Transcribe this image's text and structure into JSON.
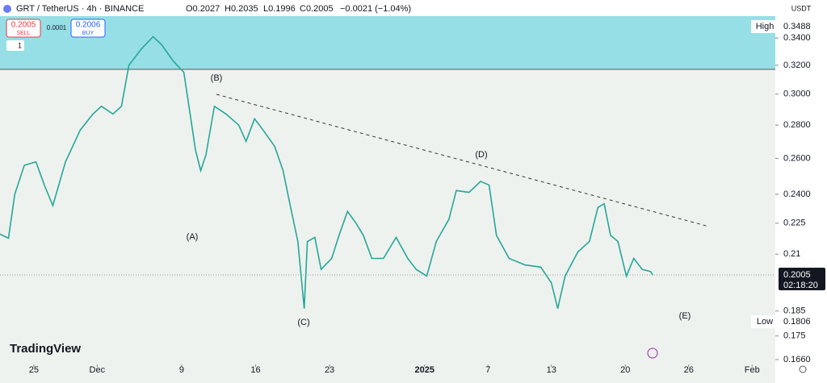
{
  "header": {
    "symbol": "GRT / TetherUS · 4h · BINANCE",
    "open": "O0.2027",
    "high": "H0.2035",
    "low": "L0.1996",
    "close": "C0.2005",
    "change": "−0.0021 (−1.04%)",
    "sell_price": "0.2005",
    "sell": "SELL",
    "spread": "0.0001",
    "buy_price": "0.2006",
    "buy": "BUY",
    "layers": "1",
    "currency": "USDT",
    "brand": "TradingView"
  },
  "chart_data": {
    "type": "line",
    "log_scale": true,
    "x": [
      -3.2,
      -2.4,
      -1.8,
      -0.9,
      0.2,
      1.0,
      1.8,
      3.0,
      4.4,
      5.6,
      6.4,
      7.5,
      8.3,
      9.0,
      10.2,
      11.3,
      12.1,
      13.2,
      14.2,
      14.8,
      15.3,
      15.8,
      16.3,
      17.1,
      18.2,
      19.4,
      20.1,
      20.9,
      21.7,
      22.8,
      23.6,
      24.2,
      25.0,
      25.6,
      25.9,
      26.6,
      27.2,
      28.2,
      28.9,
      29.7,
      30.5,
      31.2,
      32.0,
      33.1,
      34.3,
      35.4,
      36.2,
      37.2,
      38.1,
      39.3,
      40.0,
      41.2,
      42.3,
      43.1,
      43.8,
      45.0,
      46.5,
      48.0,
      49.0,
      49.6,
      50.3,
      51.5,
      52.6,
      53.4,
      54.0,
      54.6,
      55.3,
      56.1,
      56.8,
      57.6,
      58.4,
      58.6
    ],
    "values": [
      0.2196,
      0.2176,
      0.24,
      0.256,
      0.258,
      0.245,
      0.234,
      0.258,
      0.277,
      0.287,
      0.292,
      0.287,
      0.292,
      0.32,
      0.332,
      0.341,
      0.335,
      0.323,
      0.315,
      0.287,
      0.265,
      0.253,
      0.262,
      0.292,
      0.287,
      0.28,
      0.27,
      0.284,
      0.277,
      0.267,
      0.253,
      0.236,
      0.216,
      0.186,
      0.216,
      0.218,
      0.203,
      0.208,
      0.219,
      0.231,
      0.225,
      0.219,
      0.208,
      0.208,
      0.218,
      0.208,
      0.203,
      0.2,
      0.216,
      0.227,
      0.242,
      0.241,
      0.247,
      0.245,
      0.219,
      0.208,
      0.205,
      0.204,
      0.197,
      0.186,
      0.2,
      0.211,
      0.216,
      0.233,
      0.235,
      0.219,
      0.216,
      0.2,
      0.208,
      0.203,
      0.202,
      0.2005
    ],
    "color": "#26a69a",
    "xlim": [
      -3.2,
      70.2
    ],
    "xticks": [
      {
        "value": 0,
        "label": "25"
      },
      {
        "value": 6,
        "label": "Dec"
      },
      {
        "value": 14,
        "label": "9"
      },
      {
        "value": 21,
        "label": "16"
      },
      {
        "value": 28,
        "label": "23"
      },
      {
        "value": 37,
        "label": "2025"
      },
      {
        "value": 43,
        "label": "7"
      },
      {
        "value": 49,
        "label": "13"
      },
      {
        "value": 56,
        "label": "20"
      },
      {
        "value": 62,
        "label": "26"
      },
      {
        "value": 68,
        "label": "Feb"
      }
    ],
    "ylim": [
      0.1613,
      0.357
    ],
    "yticks": [
      {
        "value": 0.34,
        "label": "0.3400"
      },
      {
        "value": 0.32,
        "label": "0.3200"
      },
      {
        "value": 0.3,
        "label": "0.3000"
      },
      {
        "value": 0.28,
        "label": "0.2800"
      },
      {
        "value": 0.26,
        "label": "0.2600"
      },
      {
        "value": 0.24,
        "label": "0.2400"
      },
      0.225,
      0.21,
      0.185,
      0.175,
      {
        "value": 0.166,
        "label": "0.1660"
      }
    ],
    "price_labels": [
      {
        "name": "High",
        "value": 0.3488
      },
      {
        "name": "Low",
        "value": 0.1806
      }
    ],
    "last_price": 0.2005,
    "countdown": "02:18:20",
    "annotations": [
      "(A)",
      "(B)",
      "(C)",
      "(D)",
      "(E)"
    ]
  }
}
